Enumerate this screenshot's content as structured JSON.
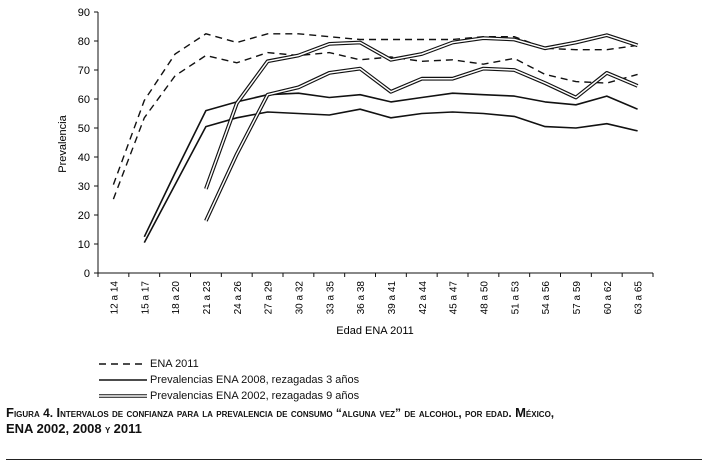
{
  "chart_data": {
    "type": "line",
    "xlabel": "Edad ENA 2011",
    "ylabel": "Prevalencia",
    "ylim": [
      0,
      90
    ],
    "yticks": [
      0,
      10,
      20,
      30,
      40,
      50,
      60,
      70,
      80,
      90
    ],
    "categories": [
      "12 a 14",
      "15 a 17",
      "18 a 20",
      "21 a 23",
      "24 a 26",
      "27 a 29",
      "30 a 32",
      "33 a 35",
      "36 a 38",
      "39 a 41",
      "42 a 44",
      "45 a 47",
      "48 a 50",
      "51 a 53",
      "54 a 56",
      "57 a 59",
      "60 a 62",
      "63 a 65"
    ],
    "series": [
      {
        "name": "ENA 2011",
        "style": "dashed",
        "color": "#111111",
        "lines": [
          [
            30.5,
            59.5,
            75.5,
            82.5,
            79.5,
            82.5,
            82.5,
            81.5,
            80.5,
            80.5,
            80.5,
            80.5,
            81.5,
            81.5,
            77.5,
            77.0,
            77.0,
            78.5
          ],
          [
            25.5,
            53.5,
            68.0,
            75.0,
            72.5,
            76.0,
            75.0,
            76.0,
            73.5,
            74.5,
            73.0,
            73.5,
            72.0,
            74.0,
            68.5,
            66.0,
            65.5,
            68.5
          ]
        ]
      },
      {
        "name": "Prevalencias ENA 2008, rezagadas 3 años",
        "style": "solid",
        "color": "#111111",
        "lines": [
          [
            null,
            12.5,
            34.5,
            56.0,
            59.0,
            61.5,
            62.0,
            60.5,
            61.5,
            59.0,
            60.5,
            62.0,
            61.5,
            61.0,
            59.0,
            58.0,
            61.0,
            56.5
          ],
          [
            null,
            10.5,
            30.5,
            50.5,
            53.5,
            55.5,
            55.0,
            54.5,
            56.5,
            53.5,
            55.0,
            55.5,
            55.0,
            54.0,
            50.5,
            50.0,
            51.5,
            49.0
          ]
        ]
      },
      {
        "name": "Prevalencias ENA 2002, rezagadas 9 años",
        "style": "double",
        "color": "#111111",
        "lines": [
          [
            null,
            null,
            null,
            29.0,
            58.5,
            73.0,
            75.0,
            79.0,
            79.5,
            73.5,
            75.5,
            79.5,
            81.0,
            80.5,
            77.5,
            79.5,
            82.0,
            78.5
          ],
          [
            null,
            null,
            null,
            18.0,
            41.0,
            61.5,
            64.0,
            69.0,
            70.5,
            62.5,
            67.0,
            67.0,
            70.5,
            70.0,
            65.5,
            60.5,
            69.0,
            64.5
          ]
        ]
      }
    ]
  },
  "legend": [
    {
      "label": "ENA 2011",
      "style": "dashed"
    },
    {
      "label": "Prevalencias ENA 2008, rezagadas 3 años",
      "style": "solid"
    },
    {
      "label": "Prevalencias ENA 2002, rezagadas 9 años",
      "style": "double"
    }
  ],
  "caption": {
    "label_cap": "F",
    "label_rest": "igura",
    "number": "4.",
    "title_cap": "I",
    "title_rest": "ntervalos de confianza para la prevalencia de consumo “alguna vez” de alcohol, por edad.",
    "place_cap": "M",
    "place_rest": "éxico,",
    "line2_cap": "ENA 2002, 2008",
    "line2_mid": "y",
    "line2_end": "2011"
  }
}
